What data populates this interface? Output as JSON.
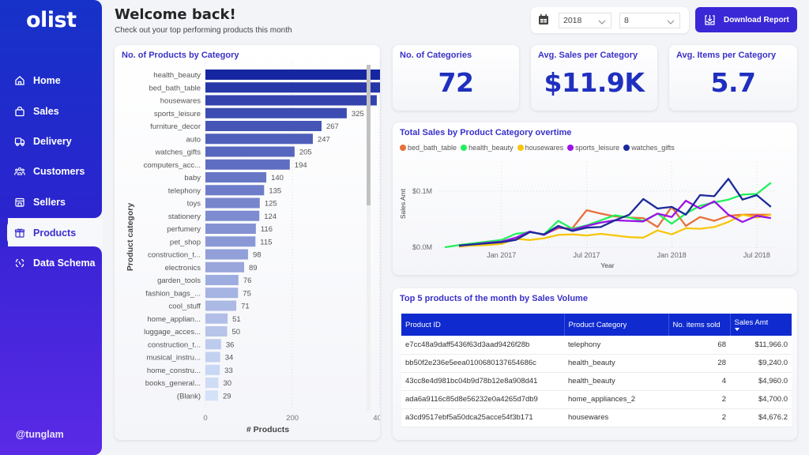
{
  "sidebar": {
    "logo": "olist",
    "items": [
      {
        "label": "Home",
        "icon": "home-icon"
      },
      {
        "label": "Sales",
        "icon": "shopping-bag-icon"
      },
      {
        "label": "Delivery",
        "icon": "truck-icon"
      },
      {
        "label": "Customers",
        "icon": "users-icon"
      },
      {
        "label": "Sellers",
        "icon": "store-icon"
      },
      {
        "label": "Products",
        "icon": "box-icon",
        "active": true
      },
      {
        "label": "Data Schema",
        "icon": "schema-icon"
      }
    ],
    "user": "@tunglam"
  },
  "header": {
    "title": "Welcome back!",
    "subtitle": "Check out your top performing products this month"
  },
  "filters": {
    "year": "2018",
    "month": "8"
  },
  "download_button": "Download Report",
  "kpis": [
    {
      "label": "No. of Categories",
      "value": "72"
    },
    {
      "label": "Avg. Sales per Category",
      "value": "$11.9K"
    },
    {
      "label": "Avg. Items per Category",
      "value": "5.7"
    }
  ],
  "chart_data": [
    {
      "type": "bar",
      "orientation": "horizontal",
      "title": "No. of Products by Category",
      "xlabel": "# Products",
      "ylabel": "Product category",
      "xlim": [
        0,
        500
      ],
      "xticks": [
        0,
        200,
        400
      ],
      "grid": true,
      "categories": [
        "health_beauty",
        "bed_bath_table",
        "housewares",
        "sports_leisure",
        "furniture_decor",
        "auto",
        "watches_gifts",
        "computers_acc...",
        "baby",
        "telephony",
        "toys",
        "stationery",
        "perfumery",
        "pet_shop",
        "construction_t...",
        "electronics",
        "garden_tools",
        "fashion_bags_...",
        "cool_stuff",
        "home_applian...",
        "luggage_acces...",
        "construction_t...",
        "musical_instru...",
        "home_constru...",
        "books_general...",
        "(Blank)"
      ],
      "values": [
        466,
        427,
        394,
        325,
        267,
        247,
        205,
        194,
        140,
        135,
        125,
        124,
        116,
        115,
        98,
        89,
        76,
        75,
        71,
        51,
        50,
        36,
        34,
        33,
        30,
        29
      ]
    },
    {
      "type": "line",
      "title": "Total Sales by Product Category overtime",
      "xlabel": "Year",
      "ylabel": "Sales Amt",
      "x": [
        "2016-09",
        "2016-10",
        "2016-11",
        "2016-12",
        "2017-01",
        "2017-02",
        "2017-03",
        "2017-04",
        "2017-05",
        "2017-06",
        "2017-07",
        "2017-08",
        "2017-09",
        "2017-10",
        "2017-11",
        "2017-12",
        "2018-01",
        "2018-02",
        "2018-03",
        "2018-04",
        "2018-05",
        "2018-06",
        "2018-07",
        "2018-08"
      ],
      "xticks": [
        "Jan 2017",
        "Jul 2017",
        "Jan 2018",
        "Jul 2018"
      ],
      "yticks": [
        "$0.0M",
        "$0.1M"
      ],
      "ylim": [
        0,
        0.13
      ],
      "grid": true,
      "legend_position": "top-left",
      "series": [
        {
          "name": "bed_bath_table",
          "color": "#e8703a",
          "values": [
            null,
            0.001,
            0.004,
            0.006,
            0.008,
            0.014,
            0.027,
            0.023,
            0.034,
            0.034,
            0.066,
            0.06,
            0.055,
            0.053,
            0.052,
            0.036,
            0.072,
            0.038,
            0.054,
            0.047,
            0.056,
            0.058,
            0.058,
            0.058
          ]
        },
        {
          "name": "health_beauty",
          "color": "#22f05a",
          "values": [
            0.0,
            0.004,
            0.007,
            0.01,
            0.013,
            0.024,
            0.027,
            0.023,
            0.047,
            0.033,
            0.039,
            0.048,
            0.057,
            0.053,
            0.047,
            0.06,
            0.042,
            0.06,
            0.074,
            0.08,
            0.085,
            0.094,
            0.095,
            0.115
          ]
        },
        {
          "name": "housewares",
          "color": "#f7c60c",
          "values": [
            null,
            0.002,
            0.003,
            0.004,
            0.006,
            0.015,
            0.013,
            0.016,
            0.022,
            0.023,
            0.021,
            0.024,
            0.021,
            0.018,
            0.017,
            0.03,
            0.023,
            0.034,
            0.033,
            0.036,
            0.045,
            0.058,
            0.053,
            0.058
          ]
        },
        {
          "name": "sports_leisure",
          "color": "#9b12e6",
          "values": [
            null,
            0.003,
            0.005,
            0.008,
            0.01,
            0.017,
            0.028,
            0.022,
            0.036,
            0.031,
            0.038,
            0.044,
            0.048,
            0.047,
            0.046,
            0.06,
            0.054,
            0.083,
            0.069,
            0.082,
            0.058,
            0.045,
            0.056,
            0.052
          ]
        },
        {
          "name": "watches_gifts",
          "color": "#1b2a9a",
          "values": [
            null,
            0.003,
            0.005,
            0.007,
            0.009,
            0.013,
            0.027,
            0.023,
            0.038,
            0.029,
            0.035,
            0.036,
            0.048,
            0.058,
            0.086,
            0.069,
            0.072,
            0.058,
            0.093,
            0.091,
            0.122,
            0.085,
            0.093,
            0.072
          ]
        }
      ]
    }
  ],
  "top_products": {
    "title": "Top 5 products of the month by Sales Volume",
    "columns": [
      "Product ID",
      "Product Category",
      "No. items sold",
      "Sales Amt"
    ],
    "sorted_column": "Sales Amt",
    "rows": [
      [
        "e7cc48a9daff5436f63d3aad9426f28b",
        "telephony",
        "68",
        "$11,966.0"
      ],
      [
        "bb50f2e236e5eea0100680137654686c",
        "health_beauty",
        "28",
        "$9,240.0"
      ],
      [
        "43cc8e4d981bc04b9d78b12e8a908d41",
        "health_beauty",
        "4",
        "$4,960.0"
      ],
      [
        "ada6a9116c85d8e56232e0a4265d7db9",
        "home_appliances_2",
        "2",
        "$4,700.0"
      ],
      [
        "a3cd9517ebf5a50dca25acce54f3b171",
        "housewares",
        "2",
        "$4,676.2"
      ]
    ]
  }
}
